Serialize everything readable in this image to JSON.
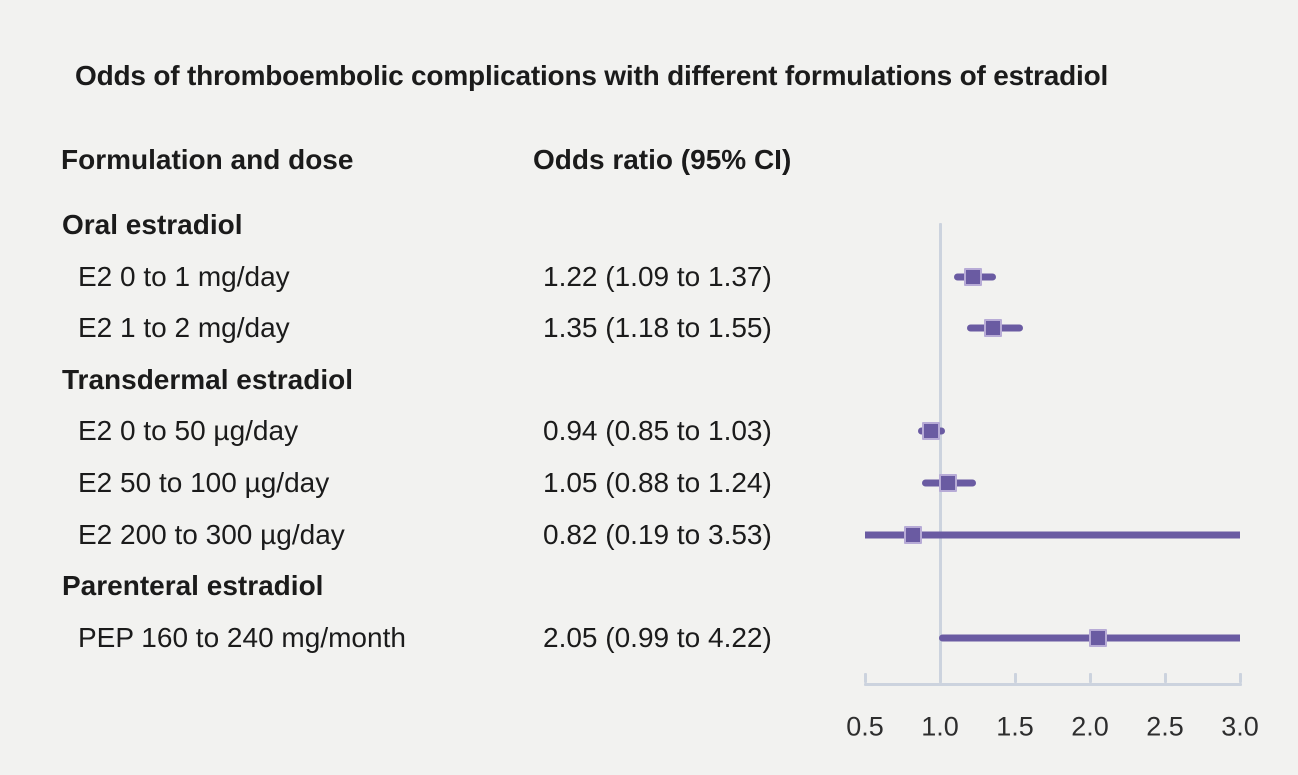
{
  "figure": {
    "title": "Odds of thromboembolic complications with different formulations of estradiol"
  },
  "colors": {
    "background": "#f2f2f0",
    "text": "#1b1b1b",
    "accent_purple": "#6a5ba2",
    "marker_border": "#b7abd6",
    "axis_gray": "#ccd3de",
    "tick_label": "#2e2e2e"
  },
  "chart_data": {
    "type": "forest",
    "title": "Odds of thromboembolic complications with different formulations of estradiol",
    "columns": {
      "label_header": "Formulation and dose",
      "value_header": "Odds ratio (95% CI)"
    },
    "axis": {
      "min": 0.5,
      "max": 3.0,
      "reference": 1.0,
      "ticks": [
        0.5,
        1.0,
        1.5,
        2.0,
        2.5,
        3.0
      ],
      "tick_labels": [
        "0.5",
        "1.0",
        "1.5",
        "2.0",
        "2.5",
        "3.0"
      ]
    },
    "rows": [
      {
        "type": "section",
        "label": "Oral estradiol"
      },
      {
        "type": "item",
        "label": "E2 0 to 1 mg/day",
        "or_text": "1.22 (1.09 to 1.37)",
        "estimate": 1.22,
        "ci_low": 1.09,
        "ci_high": 1.37
      },
      {
        "type": "item",
        "label": "E2 1 to 2 mg/day",
        "or_text": "1.35 (1.18 to 1.55)",
        "estimate": 1.35,
        "ci_low": 1.18,
        "ci_high": 1.55
      },
      {
        "type": "section",
        "label": "Transdermal estradiol"
      },
      {
        "type": "item",
        "label": "E2 0 to 50 µg/day",
        "or_text": "0.94 (0.85 to 1.03)",
        "estimate": 0.94,
        "ci_low": 0.85,
        "ci_high": 1.03
      },
      {
        "type": "item",
        "label": "E2 50 to 100 µg/day",
        "or_text": "1.05 (0.88 to 1.24)",
        "estimate": 1.05,
        "ci_low": 0.88,
        "ci_high": 1.24
      },
      {
        "type": "item",
        "label": "E2 200 to 300 µg/day",
        "or_text": "0.82 (0.19 to 3.53)",
        "estimate": 0.82,
        "ci_low": 0.19,
        "ci_high": 3.53
      },
      {
        "type": "section",
        "label": "Parenteral estradiol"
      },
      {
        "type": "item",
        "label": "PEP 160 to 240 mg/month",
        "or_text": "2.05 (0.99 to 4.22)",
        "estimate": 2.05,
        "ci_low": 0.99,
        "ci_high": 4.22
      }
    ]
  }
}
